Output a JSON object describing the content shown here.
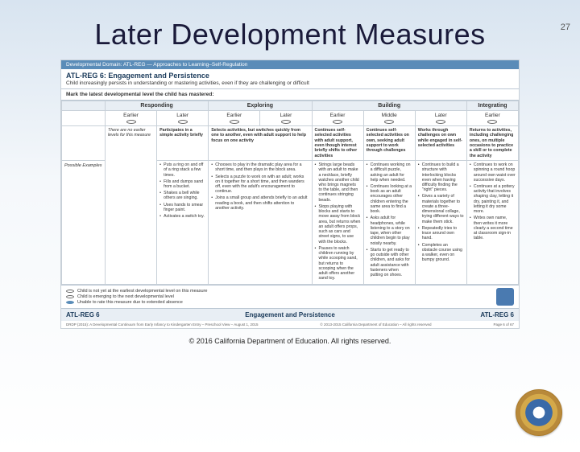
{
  "page_number": "27",
  "title": "Later Development Measures",
  "domain_bar": "Developmental Domain: ATL-REG — Approaches to Learning–Self-Regulation",
  "measure_title": "ATL-REG 6: Engagement and Persistence",
  "measure_sub": "Child increasingly persists in understanding or mastering activities, even if they are challenging or difficult",
  "mark_latest": "Mark the latest developmental level the child has mastered:",
  "categories": [
    "Responding",
    "Exploring",
    "Building",
    "Integrating"
  ],
  "subheads": [
    "Earlier",
    "Later",
    "Earlier",
    "Later",
    "Earlier",
    "Middle",
    "Later",
    "Earlier"
  ],
  "row_label_1": "",
  "row_label_2": "Possible Examples",
  "no_earlier": "There are no earlier levels for this measure",
  "descriptors": [
    "Participates in a simple activity briefly",
    "Selects activities, but switches quickly from one to another, even with adult support to help focus on one activity",
    "Continues self-selected activities with adult support, even though interest briefly shifts to other activities",
    "Continues self-selected activities on own, seeking adult support to work through challenges",
    "Works through challenges on own while engaged in self-selected activities",
    "Returns to activities, including challenging ones, on multiple occasions to practice a skill or to complete the activity"
  ],
  "examples": [
    [
      "Puts a ring on and off of a ring stack a few times.",
      "Fills and dumps sand from a bucket.",
      "Shakes a bell while others are singing.",
      "Uses hands to smear finger paint.",
      "Activates a switch toy."
    ],
    [
      "Chooses to play in the dramatic play area for a short time, and then plays in the block area.",
      "Selects a puzzle to work on with an adult; works on it together for a short time, and then wanders off, even with the adult's encouragement to continue.",
      "Joins a small group and attends briefly to an adult reading a book, and then shifts attention to another activity."
    ],
    [
      "Strings large beads with an adult to make a necklace, briefly watches another child who brings magnets to the table, and then continues stringing beads.",
      "Stops playing with blocks and starts to move away from block area, but returns when an adult offers props, such as cars and street signs, to use with the blocks.",
      "Pauses to watch children running by while scooping sand, but returns to scooping when the adult offers another sand toy."
    ],
    [
      "Continues working on a difficult puzzle, asking an adult for help when needed.",
      "Continues looking at a book as an adult encourages other children entering the same area to find a book.",
      "Asks adult for headphones, while listening to a story on tape, when other children begin to play noisily nearby.",
      "Starts to get ready to go outside with other children, and asks for adult assistance with fasteners when putting on shoes."
    ],
    [
      "Continues to build a structure with interlocking blocks even when having difficulty finding the \"right\" pieces.",
      "Gives a variety of materials together to create a three-dimensional collage, trying different ways to make them stick.",
      "Repeatedly tries to trace around own hand.",
      "Completes an obstacle course using a walker, even on bumpy ground."
    ],
    [
      "Continues to work on spinning a round hoop around own waist over successive days.",
      "Continues at a pottery activity that involves shaping clay, letting it dry, painting it, and letting it dry some more.",
      "Writes own name, then writes it more clearly a second time at classroom sign-in table."
    ]
  ],
  "legend": [
    "Child is not yet at the earliest developmental level on this measure",
    "Child is emerging to the next developmental level",
    "Unable to rate this measure due to extended absence"
  ],
  "footer_left": "ATL-REG 6",
  "footer_mid": "Engagement and Persistence",
  "footer_right": "ATL-REG 6",
  "fine_left": "DRDP (2015): A Developmental Continuum from Early Infancy to Kindergarten Entry – Preschool View – August 1, 2015",
  "fine_mid": "© 2013-2015 California Department of Education – All rights reserved",
  "fine_right": "Page 6 of 67",
  "copyright": "© 2016 California Department of Education. All rights reserved."
}
